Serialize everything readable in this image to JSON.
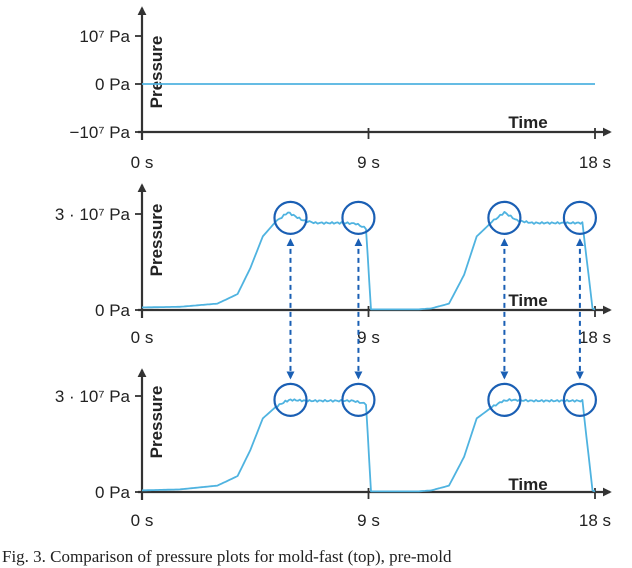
{
  "caption": "Fig. 3.   Comparison of pressure plots for mold-fast (top), pre-mold",
  "colors": {
    "signal": "#4fb3e0",
    "annotation": "#1a5fb4",
    "axis": "#333333"
  },
  "chart_data": [
    {
      "type": "line",
      "xlabel": "Time",
      "ylabel": "Pressure",
      "xticks": [
        {
          "value": 0,
          "label": "0 s"
        },
        {
          "value": 9,
          "label": "9 s"
        },
        {
          "value": 18,
          "label": "18 s"
        }
      ],
      "yticks": [
        {
          "value": 1,
          "label": "10⁷ Pa"
        },
        {
          "value": 0,
          "label": "0 Pa"
        },
        {
          "value": -1,
          "label": "−10⁷ Pa"
        }
      ],
      "xlim": [
        0,
        18
      ],
      "ylim": [
        -1,
        1
      ],
      "yunit": "10⁷ Pa",
      "series": [
        {
          "x": [
            0,
            18
          ],
          "y": [
            0,
            0
          ]
        }
      ]
    },
    {
      "type": "line",
      "xlabel": "Time",
      "ylabel": "Pressure",
      "xticks": [
        {
          "value": 0,
          "label": "0 s"
        },
        {
          "value": 9,
          "label": "9 s"
        },
        {
          "value": 18,
          "label": "18 s"
        }
      ],
      "yticks": [
        {
          "value": 3,
          "label": "3 · 10⁷ Pa"
        },
        {
          "value": 0,
          "label": "0 Pa"
        }
      ],
      "xlim": [
        0,
        18
      ],
      "ylim": [
        0,
        3.8
      ],
      "yunit": "10⁷ Pa",
      "series": [
        {
          "x": [
            0,
            1.5,
            3.0,
            3.8,
            4.3,
            4.8,
            5.3,
            5.8,
            6.4,
            6.9,
            7.4,
            8.0,
            8.5,
            8.9,
            9.1,
            11.0,
            11.5,
            12.2,
            12.8,
            13.3,
            13.9,
            14.4,
            14.9,
            15.5,
            16.2,
            16.9,
            17.5,
            17.9,
            18
          ],
          "y": [
            0.08,
            0.1,
            0.2,
            0.5,
            1.3,
            2.3,
            2.75,
            3.05,
            2.8,
            2.72,
            2.72,
            2.72,
            2.7,
            2.55,
            0.02,
            0.02,
            0.05,
            0.2,
            1.1,
            2.3,
            2.75,
            3.05,
            2.8,
            2.72,
            2.72,
            2.72,
            2.72,
            0.05,
            0.02
          ]
        }
      ],
      "annotations": [
        {
          "x": 5.9,
          "y": 2.88
        },
        {
          "x": 8.6,
          "y": 2.88
        },
        {
          "x": 14.4,
          "y": 2.88
        },
        {
          "x": 17.4,
          "y": 2.88
        }
      ]
    },
    {
      "type": "line",
      "xlabel": "Time",
      "ylabel": "Pressure",
      "xticks": [
        {
          "value": 0,
          "label": "0 s"
        },
        {
          "value": 9,
          "label": "9 s"
        },
        {
          "value": 18,
          "label": "18 s"
        }
      ],
      "yticks": [
        {
          "value": 3,
          "label": "3 · 10⁷ Pa"
        },
        {
          "value": 0,
          "label": "0 Pa"
        }
      ],
      "xlim": [
        0,
        18
      ],
      "ylim": [
        0,
        3.8
      ],
      "yunit": "10⁷ Pa",
      "series": [
        {
          "x": [
            0,
            1.5,
            3.0,
            3.8,
            4.3,
            4.8,
            5.3,
            5.7,
            5.9,
            6.5,
            7.5,
            8.4,
            8.9,
            9.1,
            11.0,
            11.5,
            12.2,
            12.8,
            13.3,
            13.9,
            14.3,
            14.6,
            15.5,
            16.5,
            17.5,
            17.9,
            18
          ],
          "y": [
            0.05,
            0.08,
            0.2,
            0.5,
            1.3,
            2.3,
            2.65,
            2.83,
            2.88,
            2.85,
            2.85,
            2.85,
            2.75,
            0.02,
            0.02,
            0.05,
            0.2,
            1.1,
            2.3,
            2.65,
            2.83,
            2.88,
            2.85,
            2.85,
            2.85,
            0.05,
            0.02
          ]
        }
      ],
      "annotations": [
        {
          "x": 5.9,
          "y": 2.88
        },
        {
          "x": 8.6,
          "y": 2.88
        },
        {
          "x": 14.4,
          "y": 2.88
        },
        {
          "x": 17.4,
          "y": 2.88
        }
      ]
    }
  ]
}
